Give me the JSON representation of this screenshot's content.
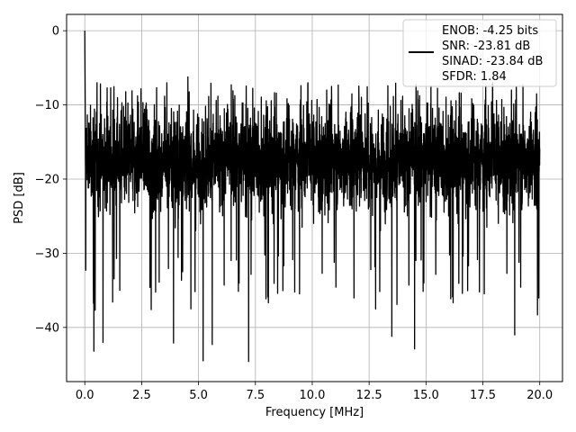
{
  "chart_data": {
    "type": "line",
    "title": "",
    "xlabel": "Frequency [MHz]",
    "ylabel": "PSD [dB]",
    "xlim": [
      -0.8,
      21.0
    ],
    "ylim": [
      -47.3,
      2.2
    ],
    "xticks": [
      0.0,
      2.5,
      5.0,
      7.5,
      10.0,
      12.5,
      15.0,
      17.5,
      20.0
    ],
    "xtick_labels": [
      "0.0",
      "2.5",
      "5.0",
      "7.5",
      "10.0",
      "12.5",
      "15.0",
      "17.5",
      "20.0"
    ],
    "yticks": [
      0,
      -10,
      -20,
      -30,
      -40
    ],
    "ytick_labels": [
      "0",
      "−10",
      "−20",
      "−30",
      "−40"
    ],
    "grid": true,
    "legend_position": "top-right",
    "line_color": "#000000",
    "series": [
      {
        "name": "ENOB: -4.25 bits\nSNR: -23.81 dB\nSINAD: -23.84 dB\nSFDR: 1.84",
        "noise_floor_mean": -17.5,
        "noise_band": [
          -30,
          -8
        ],
        "peak": {
          "x": 0.0,
          "y": 0.0
        },
        "deep_nulls": [
          {
            "x": 0.4,
            "y": -43.2
          },
          {
            "x": 0.8,
            "y": -42.0
          },
          {
            "x": 3.9,
            "y": -42.1
          },
          {
            "x": 5.2,
            "y": -44.5
          },
          {
            "x": 5.6,
            "y": -42.3
          },
          {
            "x": 7.2,
            "y": -44.6
          },
          {
            "x": 13.5,
            "y": -41.2
          },
          {
            "x": 14.5,
            "y": -42.9
          },
          {
            "x": 18.9,
            "y": -41.0
          },
          {
            "x": 19.9,
            "y": -38.3
          }
        ],
        "x_range": [
          0.0,
          20.0
        ]
      }
    ],
    "legend_lines": [
      "ENOB: -4.25 bits",
      "SNR: -23.81 dB",
      "SINAD: -23.84 dB",
      "SFDR: 1.84"
    ]
  }
}
